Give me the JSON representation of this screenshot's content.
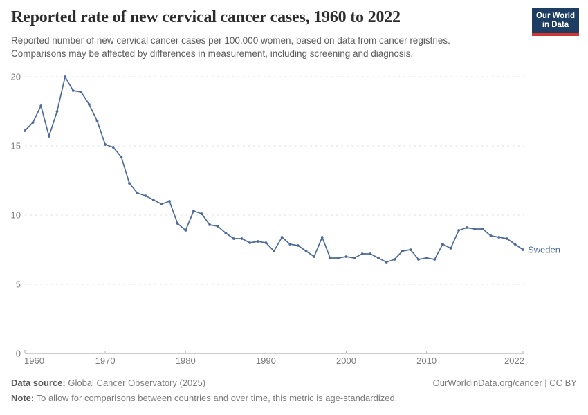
{
  "header": {
    "title": "Reported rate of new cervical cancer cases, 1960 to 2022",
    "subtitle_lines": [
      "Reported number of new cervical cancer cases per 100,000 women, based on data from cancer registries.",
      "Comparisons may be affected by differences in measurement, including screening and diagnosis."
    ],
    "logo_lines": [
      "Our World",
      "in Data"
    ]
  },
  "footer": {
    "datasource_label": "Data source:",
    "datasource_value": " Global Cancer Observatory (2025)",
    "credit": "OurWorldinData.org/cancer | CC BY",
    "note_label": "Note:",
    "note_value": " To allow for comparisons between countries and over time, this metric is age-standardized."
  },
  "colors": {
    "line": "#4c6a9c",
    "grid": "#dedede",
    "axis": "#9c9c9c",
    "tick_mark": "#b3b3b3",
    "tick_text": "#7d7d7d",
    "title_text": "#2d2d2d",
    "logo_navy": "#1d3d63",
    "logo_red": "#d13630"
  },
  "chart_data": {
    "type": "line",
    "title": "Reported rate of new cervical cancer cases, 1960 to 2022",
    "xlabel": "",
    "ylabel": "",
    "xlim": [
      1960,
      2022
    ],
    "ylim": [
      0,
      20
    ],
    "x_ticks": [
      1960,
      1970,
      1980,
      1990,
      2000,
      2010,
      2022
    ],
    "y_ticks": [
      0,
      5,
      10,
      15,
      20
    ],
    "grid": "horizontal-dashed",
    "legend_position": "end-of-line-label",
    "series": [
      {
        "name": "Sweden",
        "color": "#4c6a9c",
        "years": [
          1960,
          1961,
          1962,
          1963,
          1964,
          1965,
          1966,
          1967,
          1968,
          1969,
          1970,
          1971,
          1972,
          1973,
          1974,
          1975,
          1976,
          1977,
          1978,
          1979,
          1980,
          1981,
          1982,
          1983,
          1984,
          1985,
          1986,
          1987,
          1988,
          1989,
          1990,
          1991,
          1992,
          1993,
          1994,
          1995,
          1996,
          1997,
          1998,
          1999,
          2000,
          2001,
          2002,
          2003,
          2004,
          2005,
          2006,
          2007,
          2008,
          2009,
          2010,
          2011,
          2012,
          2013,
          2014,
          2015,
          2016,
          2017,
          2018,
          2019,
          2020,
          2021,
          2022
        ],
        "values": [
          16.1,
          16.7,
          17.9,
          15.7,
          17.5,
          20.0,
          19.0,
          18.9,
          18.0,
          16.8,
          15.1,
          14.9,
          14.2,
          12.3,
          11.6,
          11.4,
          11.1,
          10.8,
          11.0,
          9.4,
          8.9,
          10.3,
          10.1,
          9.3,
          9.2,
          8.7,
          8.3,
          8.3,
          8.0,
          8.1,
          8.0,
          7.4,
          8.4,
          7.9,
          7.8,
          7.4,
          7.0,
          8.4,
          6.9,
          6.9,
          7.0,
          6.9,
          7.2,
          7.2,
          6.9,
          6.6,
          6.8,
          7.4,
          7.5,
          6.8,
          6.9,
          6.8,
          7.9,
          7.6,
          8.9,
          9.1,
          9.0,
          9.0,
          8.5,
          8.4,
          8.3,
          7.9,
          7.5
        ]
      }
    ]
  }
}
